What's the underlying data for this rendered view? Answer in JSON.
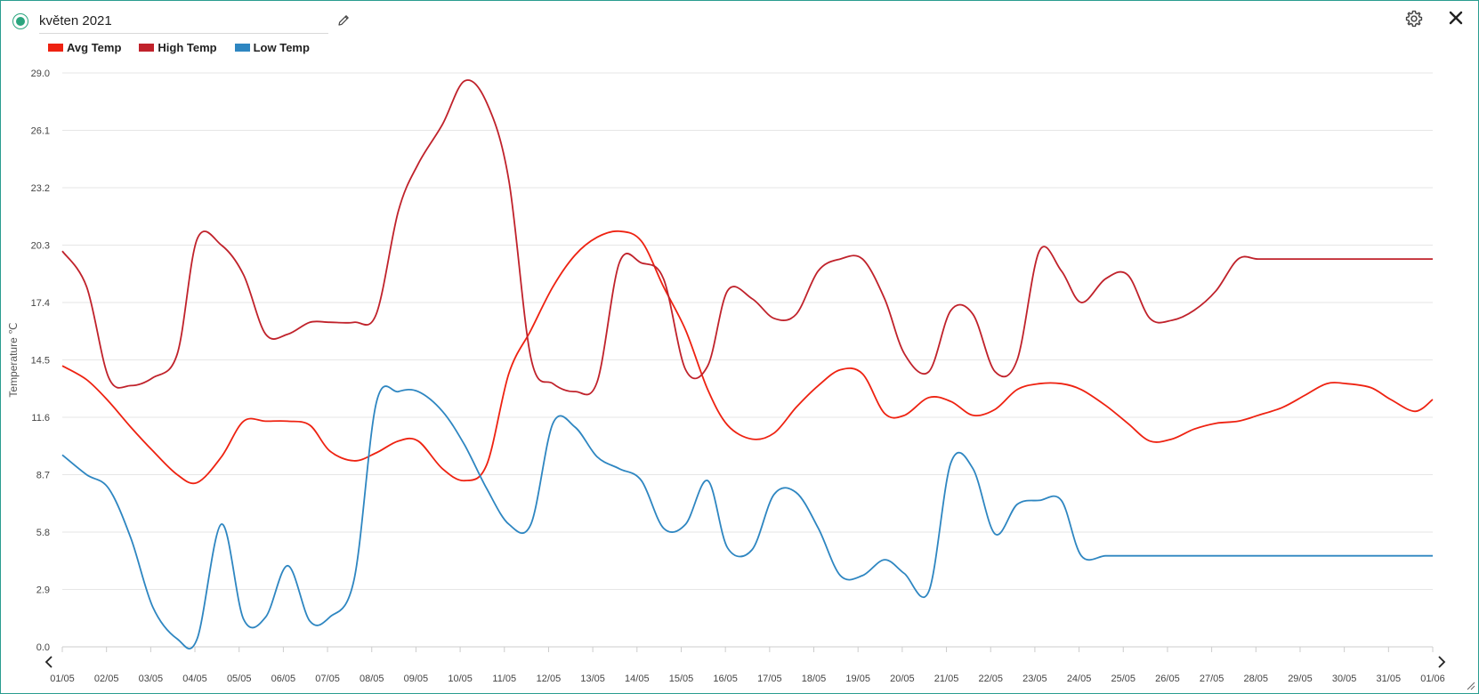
{
  "header": {
    "title_value": "květen 2021"
  },
  "legend": [
    {
      "label": "Avg Temp",
      "color": "#ee2211"
    },
    {
      "label": "High Temp",
      "color": "#c0222b"
    },
    {
      "label": "Low Temp",
      "color": "#2e86c1"
    }
  ],
  "chart_data": {
    "type": "line",
    "ylabel": "Temperature ℃",
    "xlabel": "",
    "ylim": [
      0,
      29
    ],
    "y_ticks": [
      "0.0",
      "2.9",
      "5.8",
      "8.7",
      "11.6",
      "14.5",
      "17.4",
      "20.3",
      "23.2",
      "26.1",
      "29.0"
    ],
    "categories": [
      "01/05",
      "02/05",
      "03/05",
      "04/05",
      "05/05",
      "06/05",
      "07/05",
      "08/05",
      "09/05",
      "10/05",
      "11/05",
      "12/05",
      "13/05",
      "14/05",
      "15/05",
      "16/05",
      "17/05",
      "18/05",
      "19/05",
      "20/05",
      "21/05",
      "22/05",
      "23/05",
      "24/05",
      "25/05",
      "26/05",
      "27/05",
      "28/05",
      "29/05",
      "30/05",
      "31/05",
      "01/06"
    ],
    "grid": true,
    "legend_position": "top-left",
    "series": [
      {
        "name": "Avg Temp",
        "color": "#ee2211",
        "x": [
          0,
          0.55,
          1.05,
          1.55,
          2.05,
          2.6,
          3.05,
          3.6,
          4.1,
          4.6,
          5.1,
          5.6,
          6.05,
          6.6,
          7.1,
          7.6,
          8.05,
          8.6,
          9.1,
          9.6,
          10.1,
          10.6,
          11.1,
          11.6,
          12.1,
          12.6,
          13.1,
          13.6,
          14.1,
          14.6,
          15.05,
          15.6,
          16.1,
          16.6,
          17.1,
          17.6,
          18.1,
          18.6,
          19.05,
          19.6,
          20.1,
          20.6,
          21.1,
          21.6,
          22.1,
          22.6,
          23.05,
          23.6,
          24.1,
          24.6,
          25.1,
          25.6,
          26.1,
          26.6,
          27.05,
          27.6,
          28.1,
          28.6,
          29.05,
          29.6,
          30.05,
          30.6,
          31
        ],
        "y": [
          14.2,
          13.5,
          12.4,
          11.1,
          9.9,
          8.7,
          8.3,
          9.6,
          11.4,
          11.4,
          11.4,
          11.2,
          9.9,
          9.4,
          9.8,
          10.4,
          10.4,
          9.0,
          8.4,
          9.2,
          13.8,
          16.0,
          18.2,
          19.8,
          20.7,
          21.0,
          20.5,
          18.2,
          16.0,
          13.0,
          11.2,
          10.5,
          10.8,
          12.1,
          13.2,
          14.0,
          13.8,
          11.8,
          11.7,
          12.6,
          12.4,
          11.7,
          12.0,
          13.0,
          13.3,
          13.3,
          13.0,
          12.2,
          11.3,
          10.4,
          10.5,
          11.0,
          11.3,
          11.4,
          11.7,
          12.1,
          12.7,
          13.3,
          13.3,
          13.1,
          12.5,
          11.9,
          12.5
        ]
      },
      {
        "name": "High Temp",
        "color": "#c0222b",
        "x": [
          0,
          0.55,
          1.05,
          1.55,
          2.05,
          2.6,
          3.05,
          3.6,
          4.1,
          4.6,
          5.1,
          5.6,
          6.05,
          6.6,
          7.1,
          7.6,
          8.05,
          8.6,
          9.1,
          9.6,
          10.1,
          10.6,
          11.1,
          11.6,
          12.1,
          12.6,
          13.1,
          13.6,
          14.1,
          14.6,
          15.05,
          15.6,
          16.1,
          16.6,
          17.1,
          17.6,
          18.1,
          18.6,
          19.05,
          19.6,
          20.1,
          20.6,
          21.1,
          21.6,
          22.1,
          22.6,
          23.05,
          23.6,
          24.1,
          24.6,
          25.1,
          25.6,
          26.1,
          26.6,
          27.05,
          27.6,
          28.1,
          28.6,
          29.05,
          29.6,
          30.05,
          30.6,
          31
        ],
        "y": [
          20.0,
          18.2,
          13.6,
          13.2,
          13.6,
          14.8,
          20.6,
          20.3,
          18.8,
          15.8,
          15.8,
          16.4,
          16.4,
          16.4,
          16.8,
          22.0,
          24.4,
          26.4,
          28.6,
          27.5,
          23.6,
          14.6,
          13.3,
          12.9,
          13.4,
          19.4,
          19.4,
          18.6,
          14.0,
          14.2,
          18.0,
          17.6,
          16.6,
          16.8,
          19.0,
          19.6,
          19.6,
          17.6,
          14.8,
          13.9,
          17.0,
          16.8,
          13.9,
          14.5,
          20.0,
          19.0,
          17.4,
          18.6,
          18.8,
          16.6,
          16.5,
          17.0,
          18.0,
          19.6,
          19.6,
          19.6,
          19.6,
          19.6,
          19.6,
          19.6,
          19.6,
          19.6,
          19.6
        ]
      },
      {
        "name": "Low Temp",
        "color": "#2e86c1",
        "x": [
          0,
          0.55,
          1.05,
          1.55,
          2.05,
          2.6,
          3.05,
          3.6,
          4.1,
          4.6,
          5.1,
          5.6,
          6.05,
          6.6,
          7.1,
          7.6,
          8.05,
          8.6,
          9.1,
          9.6,
          10.1,
          10.6,
          11.1,
          11.6,
          12.1,
          12.6,
          13.1,
          13.6,
          14.1,
          14.6,
          15.05,
          15.6,
          16.1,
          16.6,
          17.1,
          17.6,
          18.1,
          18.6,
          19.05,
          19.6,
          20.1,
          20.6,
          21.1,
          21.6,
          22.1,
          22.6,
          23.05,
          23.6,
          24.1,
          24.6,
          25.1,
          25.6,
          26.1,
          26.6,
          27.05,
          27.6,
          28.1,
          28.6,
          29.05,
          29.6,
          30.05,
          30.6,
          31
        ],
        "y": [
          9.7,
          8.7,
          8.0,
          5.5,
          2.0,
          0.4,
          0.4,
          6.2,
          1.4,
          1.5,
          4.1,
          1.3,
          1.5,
          3.4,
          12.3,
          12.9,
          12.9,
          11.9,
          10.2,
          8.0,
          6.2,
          6.2,
          11.3,
          11.1,
          9.6,
          9.0,
          8.4,
          6.0,
          6.2,
          8.4,
          5.0,
          4.9,
          7.7,
          7.8,
          6.0,
          3.6,
          3.6,
          4.4,
          3.7,
          2.8,
          9.3,
          9.0,
          5.7,
          7.2,
          7.4,
          7.4,
          4.6,
          4.6,
          4.6,
          4.6,
          4.6,
          4.6,
          4.6,
          4.6,
          4.6,
          4.6,
          4.6,
          4.6,
          4.6,
          4.6,
          4.6,
          4.6,
          4.6
        ]
      }
    ]
  }
}
